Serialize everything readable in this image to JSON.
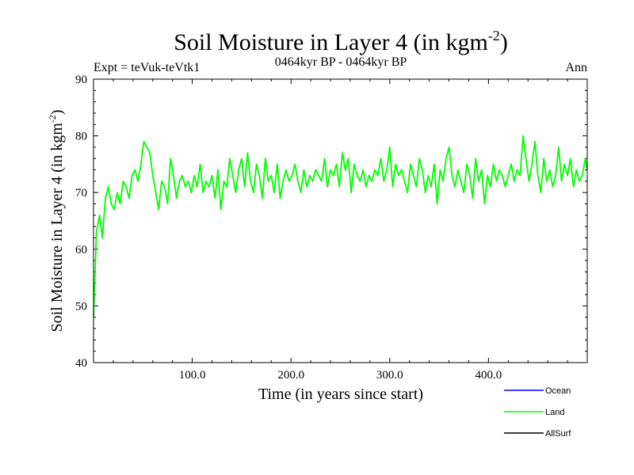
{
  "chart_data": {
    "type": "line",
    "title_main": "Soil Moisture in Layer 4 (in kgm",
    "title_sup": "-2",
    "title_close": ")",
    "subtitle_left": "Expt = teVuk-teVtk1",
    "subtitle_center": "0464kyr BP - 0464kyr BP",
    "subtitle_right": "Ann",
    "xlabel": "Time (in years since start)",
    "ylabel_main": "Soil Moisture in Layer 4 (in kgm",
    "ylabel_sup": "-2",
    "ylabel_close": ")",
    "xlim": [
      0,
      500
    ],
    "ylim": [
      40,
      90
    ],
    "x_ticks": [
      100,
      200,
      300,
      400
    ],
    "x_tick_labels": [
      "100.0",
      "200.0",
      "300.0",
      "400.0"
    ],
    "y_ticks": [
      40,
      50,
      60,
      70,
      80,
      90
    ],
    "y_tick_labels": [
      "40",
      "50",
      "60",
      "70",
      "80",
      "90"
    ],
    "legend_placement": "bottom-right",
    "legend": [
      {
        "name": "Ocean",
        "color": "#0000ff"
      },
      {
        "name": "Land",
        "color": "#00ff00"
      },
      {
        "name": "AllSurf",
        "color": "#000000"
      }
    ],
    "series": [
      {
        "name": "Land",
        "color": "#00ff00",
        "x": [
          0,
          3,
          6,
          9,
          12,
          15,
          18,
          21,
          24,
          27,
          30,
          33,
          36,
          39,
          42,
          45,
          48,
          51,
          54,
          57,
          60,
          63,
          66,
          69,
          72,
          75,
          78,
          81,
          84,
          87,
          90,
          93,
          96,
          99,
          102,
          105,
          108,
          111,
          114,
          117,
          120,
          123,
          126,
          129,
          132,
          135,
          138,
          141,
          144,
          147,
          150,
          153,
          156,
          159,
          162,
          165,
          168,
          171,
          174,
          177,
          180,
          183,
          186,
          189,
          192,
          195,
          198,
          201,
          204,
          207,
          210,
          213,
          216,
          219,
          222,
          225,
          228,
          231,
          234,
          237,
          240,
          243,
          246,
          249,
          252,
          255,
          258,
          261,
          264,
          267,
          270,
          273,
          276,
          279,
          282,
          285,
          288,
          291,
          294,
          297,
          300,
          303,
          306,
          309,
          312,
          315,
          318,
          321,
          324,
          327,
          330,
          333,
          336,
          339,
          342,
          345,
          348,
          351,
          354,
          357,
          360,
          363,
          366,
          369,
          372,
          375,
          378,
          381,
          384,
          387,
          390,
          393,
          396,
          399,
          402,
          405,
          408,
          411,
          414,
          417,
          420,
          423,
          426,
          429,
          432,
          435,
          438,
          441,
          444,
          447,
          450,
          453,
          456,
          459,
          462,
          465,
          468,
          471,
          474,
          477,
          480,
          483,
          486,
          489,
          492,
          495,
          498,
          500
        ],
        "values": [
          48,
          63,
          66,
          62,
          69,
          71,
          68,
          67,
          70,
          68,
          72,
          71,
          69,
          73,
          74,
          72,
          75,
          79,
          78,
          77,
          73,
          70,
          67,
          72,
          71,
          68,
          76,
          73,
          69,
          72,
          73,
          71,
          72,
          70,
          73,
          71,
          75,
          70,
          72,
          71,
          73,
          69,
          74,
          67,
          72,
          71,
          76,
          73,
          70,
          74,
          76,
          71,
          77,
          72,
          70,
          75,
          73,
          69,
          76,
          72,
          73,
          70,
          75,
          69,
          72,
          74,
          72,
          73,
          75,
          72,
          70,
          74,
          71,
          73,
          72,
          74,
          73,
          72,
          76,
          71,
          74,
          73,
          75,
          71,
          77,
          74,
          76,
          70,
          75,
          73,
          72,
          74,
          71,
          73,
          72,
          74,
          73,
          76,
          72,
          74,
          78,
          71,
          75,
          73,
          74,
          72,
          70,
          75,
          73,
          71,
          76,
          74,
          70,
          73,
          71,
          75,
          68,
          74,
          72,
          76,
          78,
          73,
          71,
          74,
          72,
          70,
          75,
          73,
          69,
          76,
          72,
          74,
          68,
          73,
          71,
          75,
          72,
          74,
          73,
          71,
          73,
          75,
          72,
          74,
          73,
          80,
          76,
          72,
          75,
          79,
          73,
          70,
          76,
          72,
          74,
          71,
          73,
          78,
          72,
          75,
          73,
          76,
          71,
          74,
          72,
          73,
          76,
          74
        ]
      },
      {
        "name": "Ocean",
        "color": "#0000ff",
        "x": [],
        "values": []
      },
      {
        "name": "AllSurf",
        "color": "#000000",
        "x": [],
        "values": []
      }
    ]
  }
}
